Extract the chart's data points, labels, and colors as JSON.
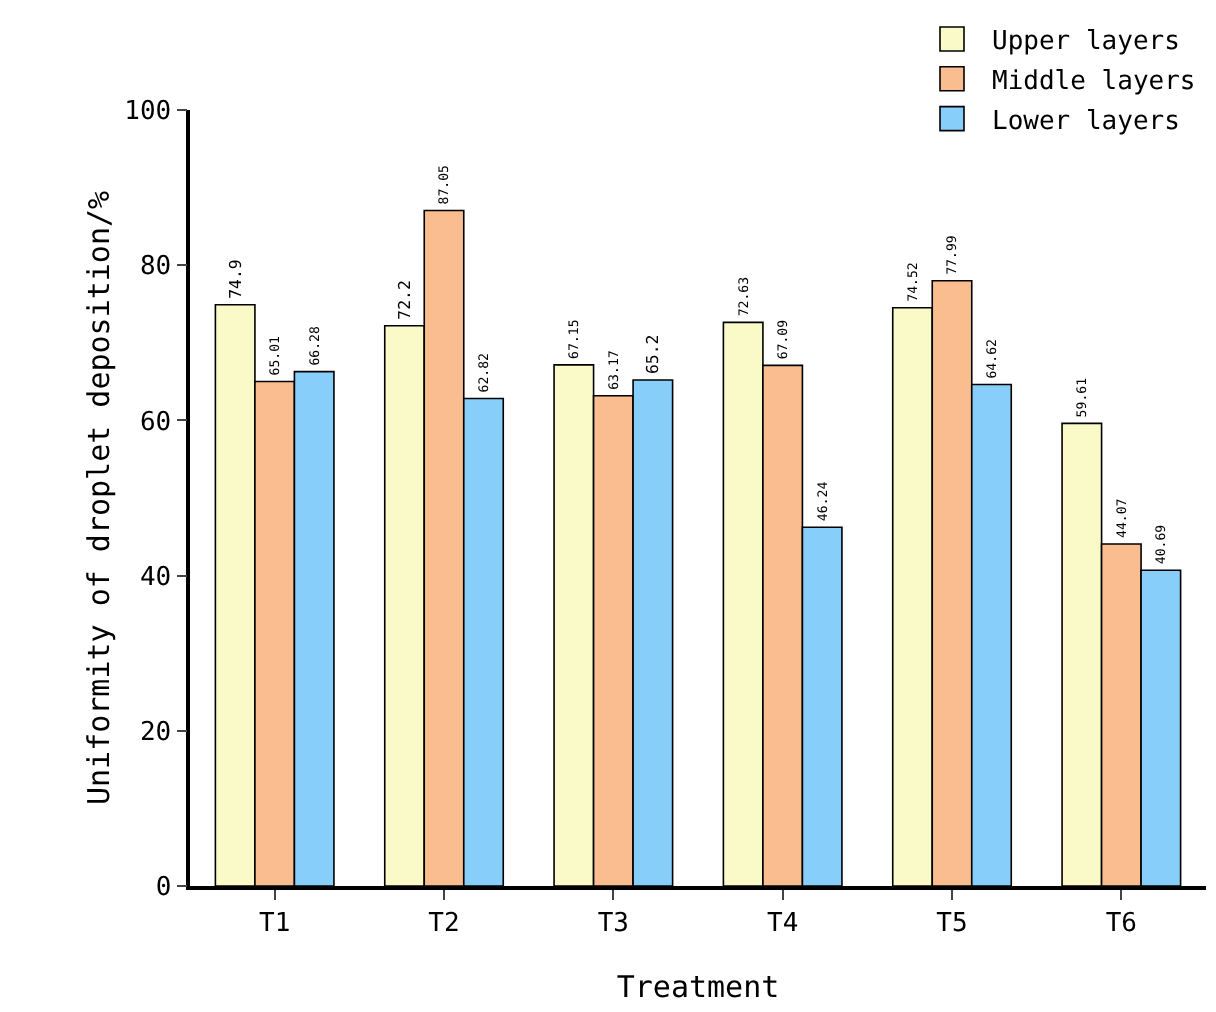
{
  "chart_data": {
    "type": "bar",
    "xlabel": "Treatment",
    "ylabel": "Uniformity of droplet deposition/%",
    "categories": [
      "T1",
      "T2",
      "T3",
      "T4",
      "T5",
      "T6"
    ],
    "series": [
      {
        "name": "Upper layers",
        "color": "#fafac8",
        "values": [
          74.9,
          72.2,
          67.15,
          72.63,
          74.52,
          59.61
        ]
      },
      {
        "name": "Middle layers",
        "color": "#f9bd8f",
        "values": [
          65.01,
          87.05,
          63.17,
          67.09,
          77.99,
          44.07
        ]
      },
      {
        "name": "Lower layers",
        "color": "#87cefa",
        "values": [
          66.28,
          62.82,
          65.2,
          46.24,
          64.62,
          40.69
        ]
      }
    ],
    "ylim": [
      0,
      100
    ],
    "yticks": [
      0,
      20,
      40,
      60,
      80,
      100
    ],
    "grid": false,
    "legend": "top right",
    "data_labels": true
  }
}
